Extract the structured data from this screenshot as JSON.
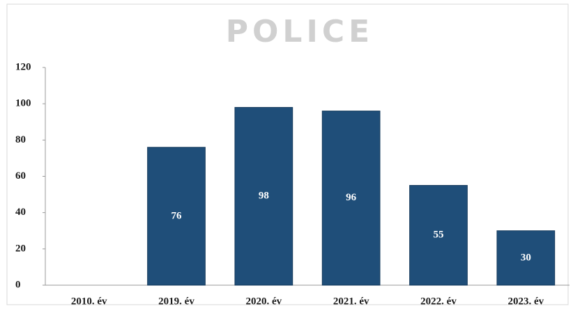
{
  "chart_data": {
    "type": "bar",
    "watermark": "POLICE",
    "categories": [
      "2010. év",
      "2019. év",
      "2020. év",
      "2021. év",
      "2022. év",
      "2023. év"
    ],
    "values": [
      null,
      76,
      98,
      96,
      55,
      30
    ],
    "color": "#1f4e79",
    "ylim": [
      0,
      120
    ],
    "yticks": [
      0,
      20,
      40,
      60,
      80,
      100,
      120
    ],
    "grid": false
  }
}
